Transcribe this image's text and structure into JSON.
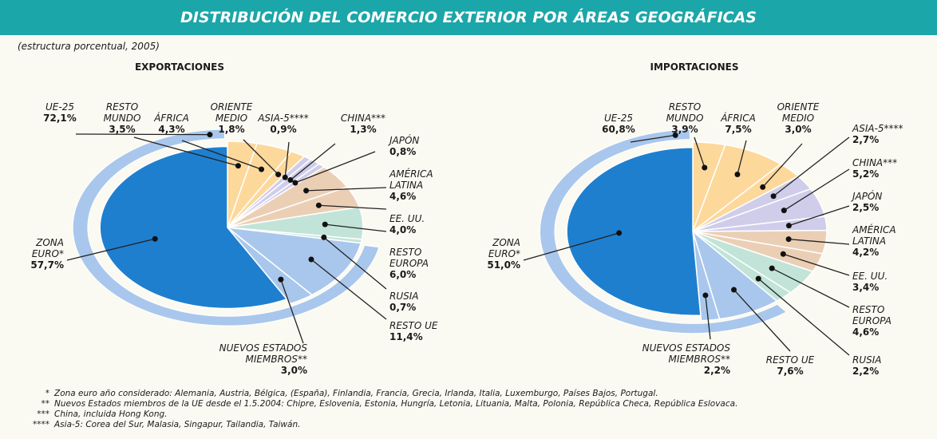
{
  "title": "DISTRIBUCIÓN DEL COMERCIO EXTERIOR POR ÁREAS GEOGRÁFICAS",
  "subtitle": "(estructura porcentual, 2005)",
  "chart_data": [
    {
      "type": "pie",
      "title": "EXPORTACIONES",
      "categories": [
        "RESTO MUNDO",
        "ÁFRICA",
        "ORIENTE MEDIO",
        "ASIA-5****",
        "CHINA***",
        "JAPÓN",
        "AMÉRICA LATINA",
        "EE. UU.",
        "RESTO EUROPA",
        "RUSIA",
        "RESTO UE",
        "NUEVOS ESTADOS MIEMBROS**",
        "ZONA EURO*"
      ],
      "values": [
        3.5,
        4.3,
        1.8,
        0.9,
        1.3,
        0.8,
        4.6,
        4.0,
        6.0,
        0.7,
        11.4,
        3.0,
        57.7
      ],
      "value_labels": [
        "3,5%",
        "4,3%",
        "1,8%",
        "0,9%",
        "1,3%",
        "0,8%",
        "4,6%",
        "4,0%",
        "6,0%",
        "0,7%",
        "11,4%",
        "3,0%",
        "57,7%"
      ],
      "colors": [
        "#fdd89b",
        "#fdd89b",
        "#fdd89b",
        "#cfcdea",
        "#cfcdea",
        "#cfcdea",
        "#ebcfb5",
        "#ebcfb5",
        "#c2e4d8",
        "#c2e4d8",
        "#a9c7ec",
        "#a9c7ec",
        "#1f7fcf"
      ],
      "group": {
        "name": "UE-25",
        "value": 72.1,
        "value_label": "72,1%",
        "color": "#a9c7ec"
      }
    },
    {
      "type": "pie",
      "title": "IMPORTACIONES",
      "categories": [
        "RESTO MUNDO",
        "ÁFRICA",
        "ORIENTE MEDIO",
        "ASIA-5****",
        "CHINA***",
        "JAPÓN",
        "AMÉRICA LATINA",
        "EE. UU.",
        "RESTO EUROPA",
        "RUSIA",
        "RESTO UE",
        "NUEVOS ESTADOS MIEMBROS**",
        "ZONA EURO*"
      ],
      "values": [
        3.9,
        7.5,
        3.0,
        2.7,
        5.2,
        2.5,
        4.2,
        3.4,
        4.6,
        2.2,
        7.6,
        2.2,
        51.0
      ],
      "value_labels": [
        "3,9%",
        "7,5%",
        "3,0%",
        "2,7%",
        "5,2%",
        "2,5%",
        "4,2%",
        "3,4%",
        "4,6%",
        "2,2%",
        "7,6%",
        "2,2%",
        "51,0%"
      ],
      "colors": [
        "#fdd89b",
        "#fdd89b",
        "#fdd89b",
        "#cfcdea",
        "#cfcdea",
        "#cfcdea",
        "#ebcfb5",
        "#ebcfb5",
        "#c2e4d8",
        "#c2e4d8",
        "#a9c7ec",
        "#a9c7ec",
        "#1f7fcf"
      ],
      "group": {
        "name": "UE-25",
        "value": 60.8,
        "value_label": "60,8%",
        "color": "#a9c7ec"
      }
    }
  ],
  "notes": [
    {
      "mark": "*",
      "text": "Zona euro año considerado: Alemania, Austria, Bélgica, (España), Finlandia, Francia, Grecia, Irlanda, Italia, Luxemburgo, Países Bajos, Portugal."
    },
    {
      "mark": "**",
      "text": "Nuevos Estados miembros de la UE desde el 1.5.2004: Chipre, Eslovenia, Estonia, Hungría, Letonia, Lituania, Malta, Polonia, República Checa, República Eslovaca."
    },
    {
      "mark": "***",
      "text": "China, incluida Hong Kong."
    },
    {
      "mark": "****",
      "text": "Asia-5: Corea del Sur, Malasia, Singapur, Tailandia, Taiwán."
    }
  ]
}
